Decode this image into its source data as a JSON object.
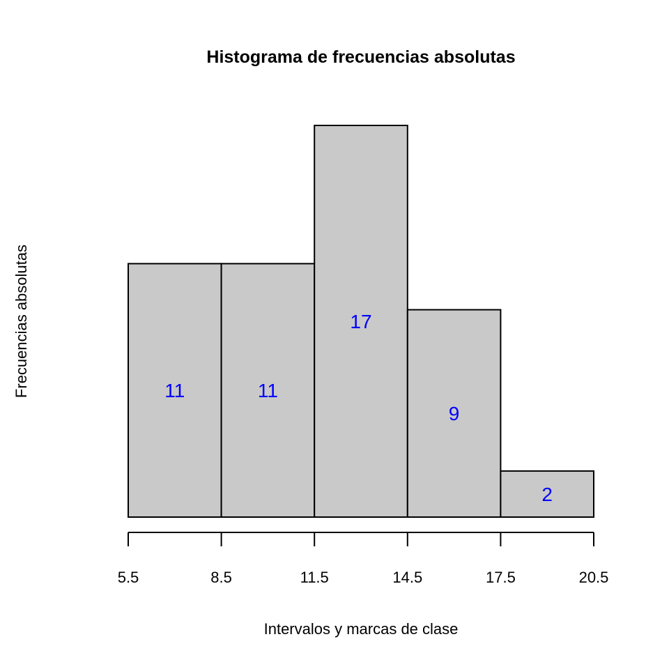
{
  "chart_data": {
    "type": "bar",
    "title": "Histograma de frecuencias absolutas",
    "xlabel": "Intervalos y marcas de clase",
    "ylabel": "Frecuencias absolutas",
    "breaks": [
      5.5,
      8.5,
      11.5,
      14.5,
      17.5,
      20.5
    ],
    "tick_labels": [
      "5.5",
      "8.5",
      "11.5",
      "14.5",
      "17.5",
      "20.5"
    ],
    "values": [
      11,
      11,
      17,
      9,
      2
    ],
    "data_labels": [
      "11",
      "11",
      "17",
      "9",
      "2"
    ],
    "xlim": [
      5.5,
      20.5
    ],
    "ylim": [
      0,
      17
    ],
    "bar_color": "#c9c9c9",
    "label_color": "#0000ff",
    "grid": false,
    "y_axis_drawn": false
  }
}
